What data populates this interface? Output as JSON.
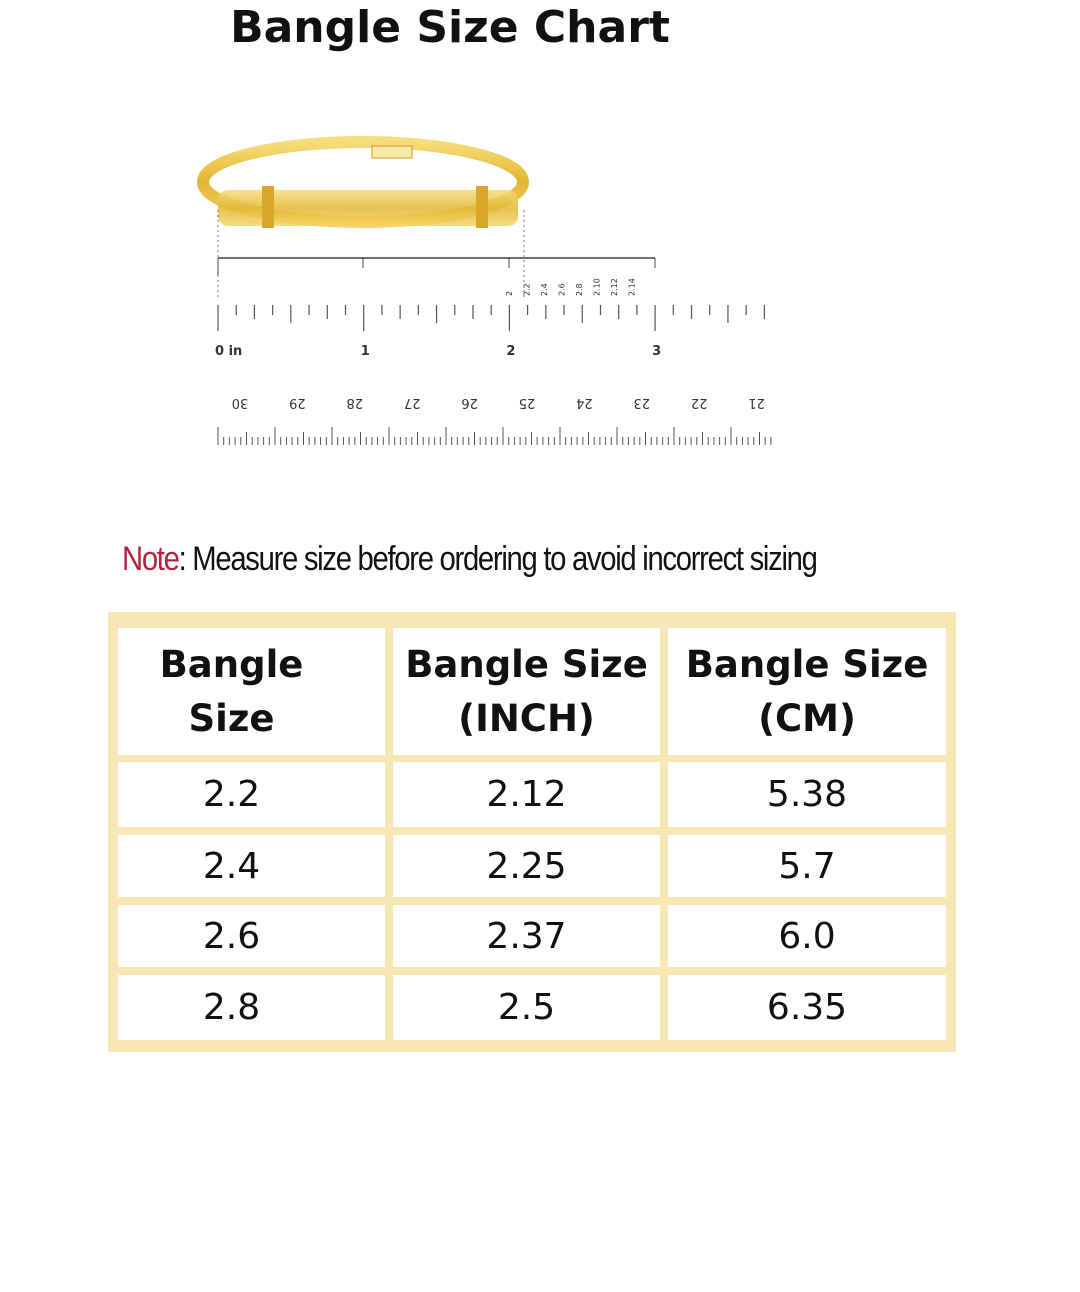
{
  "title": "Bangle Size Chart",
  "ruler": {
    "inch_labels": [
      "0 in",
      "1",
      "2",
      "3"
    ],
    "size_marks": [
      "2",
      "2.2",
      "2.4",
      "2.6",
      "2.8",
      "2.10",
      "2.12",
      "2.14"
    ],
    "cm_labels": [
      "30",
      "29",
      "28",
      "27",
      "26",
      "25",
      "24",
      "23",
      "22",
      "21"
    ]
  },
  "note": {
    "label": "Note",
    "text": ": Measure size before ordering to avoid incorrect sizing"
  },
  "table": {
    "header": [
      "Bangle Size",
      "Bangle Size (INCH)",
      "Bangle Size (CM)"
    ],
    "rows": [
      [
        "2.2",
        "2.12",
        "5.38"
      ],
      [
        "2.4",
        "2.25",
        "5.7"
      ],
      [
        "2.6",
        "2.37",
        "6.0"
      ],
      [
        "2.8",
        "2.5",
        "6.35"
      ]
    ]
  }
}
